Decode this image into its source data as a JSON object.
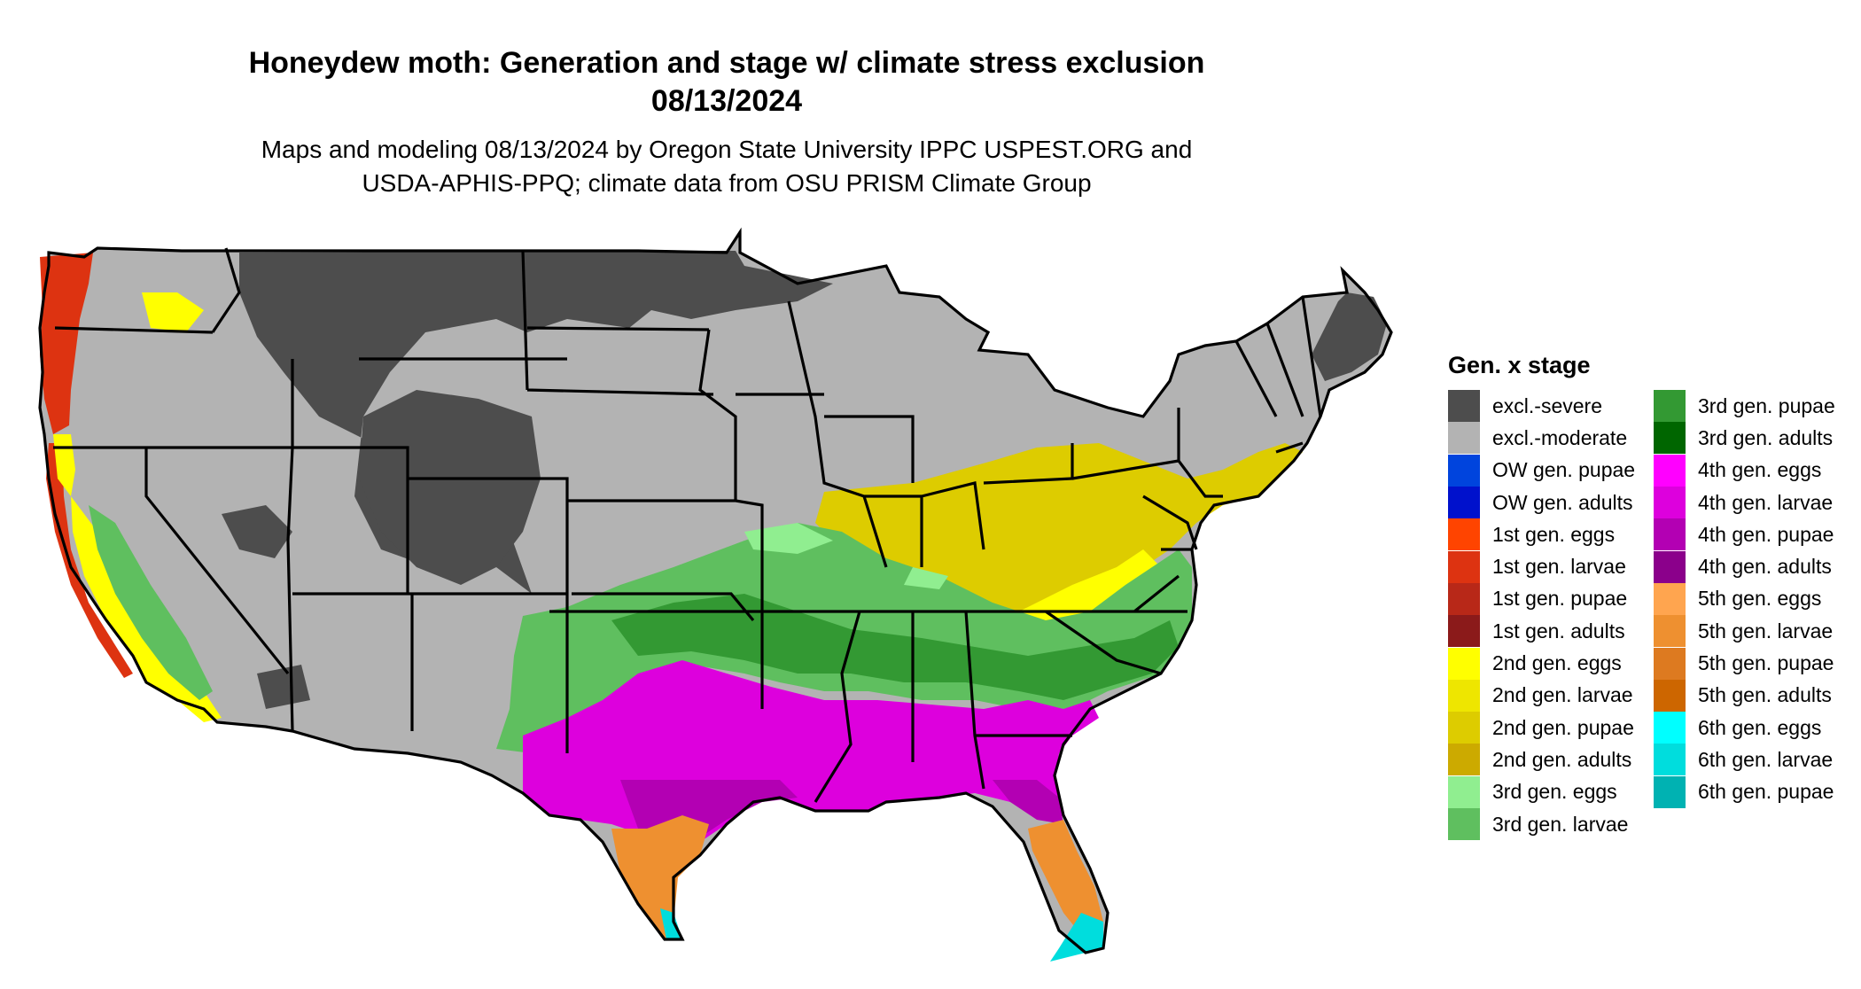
{
  "title": {
    "line1": "Honeydew moth: Generation and stage w/ climate stress exclusion",
    "line2": "08/13/2024"
  },
  "subtitle": {
    "line1": "Maps and modeling 08/13/2024 by Oregon State University IPPC USPEST.ORG and",
    "line2": "USDA-APHIS-PPQ; climate data from OSU PRISM Climate Group"
  },
  "legend": {
    "title": "Gen. x stage",
    "items": [
      {
        "label": "excl.-severe",
        "color": "#4d4d4d"
      },
      {
        "label": "excl.-moderate",
        "color": "#b3b3b3"
      },
      {
        "label": "OW gen. pupae",
        "color": "#0044dd"
      },
      {
        "label": "OW gen. adults",
        "color": "#0011cc"
      },
      {
        "label": "1st gen. eggs",
        "color": "#ff4400"
      },
      {
        "label": "1st gen. larvae",
        "color": "#dd3311"
      },
      {
        "label": "1st gen. pupae",
        "color": "#b82818"
      },
      {
        "label": "1st gen. adults",
        "color": "#8b1a1a"
      },
      {
        "label": "2nd gen. eggs",
        "color": "#ffff00"
      },
      {
        "label": "2nd gen. larvae",
        "color": "#eee600"
      },
      {
        "label": "2nd gen. pupae",
        "color": "#ddcc00"
      },
      {
        "label": "2nd gen. adults",
        "color": "#ccaa00"
      },
      {
        "label": "3rd gen. eggs",
        "color": "#90ee90"
      },
      {
        "label": "3rd gen. larvae",
        "color": "#5fbf5f"
      },
      {
        "label": "3rd gen. pupae",
        "color": "#339933"
      },
      {
        "label": "3rd gen. adults",
        "color": "#006600"
      },
      {
        "label": "4th gen. eggs",
        "color": "#ff00ff"
      },
      {
        "label": "4th gen. larvae",
        "color": "#dd00dd"
      },
      {
        "label": "4th gen. pupae",
        "color": "#b300b3"
      },
      {
        "label": "4th gen. adults",
        "color": "#8b008b"
      },
      {
        "label": "5th gen. eggs",
        "color": "#ffa54f"
      },
      {
        "label": "5th gen. larvae",
        "color": "#ee9030"
      },
      {
        "label": "5th gen. pupae",
        "color": "#dd7a20"
      },
      {
        "label": "5th gen. adults",
        "color": "#cd6600"
      },
      {
        "label": "6th gen. eggs",
        "color": "#00ffff"
      },
      {
        "label": "6th gen. larvae",
        "color": "#00dddd"
      },
      {
        "label": "6th gen. pupae",
        "color": "#00b2b2"
      }
    ]
  },
  "map_regions": {
    "colors": {
      "severe": "#4d4d4d",
      "moderate": "#b3b3b3",
      "gen1": "#dd3311",
      "gen2": "#ddcc00",
      "gen2_eggs": "#ffff00",
      "gen3_eggs": "#90ee90",
      "gen3_larvae": "#5fbf5f",
      "gen3_pupae": "#339933",
      "gen4": "#dd00dd",
      "gen4_pupae": "#b300b3",
      "gen5": "#ee9030",
      "gen6": "#00dddd",
      "border": "#000000"
    }
  }
}
